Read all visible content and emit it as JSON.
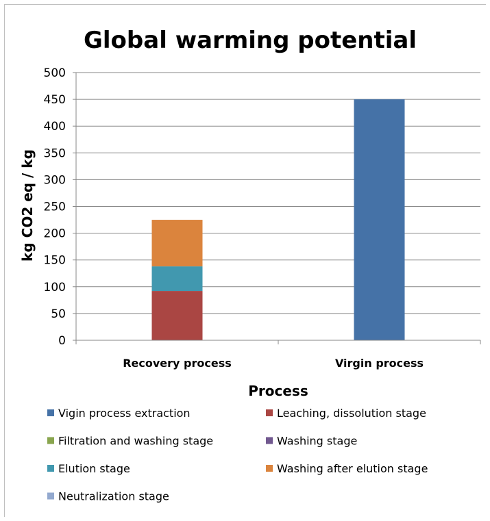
{
  "chart_data": {
    "type": "bar",
    "stacked": true,
    "title": "Global warming potential",
    "xlabel": "Process",
    "ylabel": "kg CO2 eq / kg",
    "ylim": [
      0,
      500
    ],
    "yticks": [
      0,
      50,
      100,
      150,
      200,
      250,
      300,
      350,
      400,
      450,
      500
    ],
    "categories": [
      "Recovery process",
      "Virgin process"
    ],
    "grid": true,
    "legend_position": "bottom",
    "series": [
      {
        "name": "Vigin process extraction",
        "color": "#4572a7",
        "values": [
          0,
          450
        ]
      },
      {
        "name": "Leaching, dissolution stage",
        "color": "#aa4643",
        "values": [
          92,
          0
        ]
      },
      {
        "name": "Filtration and washing stage",
        "color": "#89a54e",
        "values": [
          0,
          0
        ]
      },
      {
        "name": "Washing stage",
        "color": "#71588f",
        "values": [
          0,
          0
        ]
      },
      {
        "name": "Elution stage",
        "color": "#4198af",
        "values": [
          46,
          0
        ]
      },
      {
        "name": "Washing after elution stage",
        "color": "#db843d",
        "values": [
          87,
          0
        ]
      },
      {
        "name": "Neutralization stage",
        "color": "#93a9cf",
        "values": [
          0,
          0
        ]
      }
    ]
  }
}
